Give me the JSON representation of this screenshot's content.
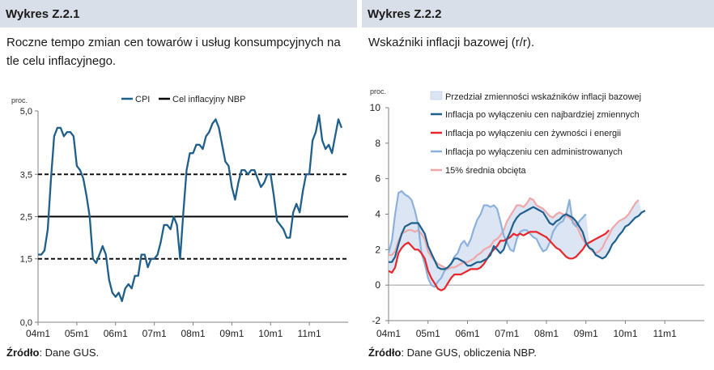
{
  "chart_data": [
    {
      "type": "line",
      "header": "Wykres Z.2.1",
      "title": "Roczne tempo zmian cen towarów i usług konsumpcyjnych na tle celu inflacyjnego.",
      "ylabel": "proc.",
      "ylim": [
        0,
        5
      ],
      "yticks": [
        "0,0",
        "1,5",
        "2,5",
        "3,5",
        "5,0"
      ],
      "ytick_values": [
        0,
        1.5,
        2.5,
        3.5,
        5
      ],
      "x_tick_labels": [
        "04m1",
        "05m1",
        "06m1",
        "07m1",
        "08m1",
        "09m1",
        "10m1",
        "11m1"
      ],
      "legend": [
        "CPI",
        "Cel inflacyjny NBP"
      ],
      "legend_position": "top",
      "target": 2.5,
      "band": [
        1.5,
        3.5
      ],
      "series": [
        {
          "name": "CPI",
          "color": "#1f5f8b",
          "start": "2004-01",
          "values": [
            1.6,
            1.6,
            1.7,
            2.2,
            3.4,
            4.4,
            4.6,
            4.6,
            4.4,
            4.5,
            4.5,
            4.4,
            3.7,
            3.6,
            3.4,
            3.0,
            2.5,
            1.5,
            1.4,
            1.6,
            1.8,
            1.6,
            1.0,
            0.7,
            0.6,
            0.7,
            0.5,
            0.8,
            0.9,
            0.8,
            1.1,
            1.1,
            1.6,
            1.6,
            1.3,
            1.5,
            1.5,
            1.6,
            1.9,
            2.3,
            2.3,
            2.2,
            2.5,
            2.3,
            1.5,
            2.6,
            3.6,
            4.0,
            4.0,
            4.2,
            4.2,
            4.1,
            4.4,
            4.5,
            4.7,
            4.8,
            4.6,
            4.2,
            3.8,
            3.7,
            3.2,
            2.9,
            3.3,
            3.6,
            3.6,
            3.5,
            3.6,
            3.6,
            3.4,
            3.2,
            3.3,
            3.5,
            3.5,
            3.0,
            2.4,
            2.3,
            2.2,
            2.0,
            2.0,
            2.6,
            2.8,
            2.6,
            3.1,
            3.5,
            3.5,
            4.3,
            4.5,
            4.9,
            4.3,
            4.1,
            4.2,
            4.0,
            4.4,
            4.8,
            4.6
          ]
        },
        {
          "name": "Cel inflacyjny NBP",
          "color": "#000000"
        }
      ]
    },
    {
      "type": "line",
      "header": "Wykres Z.2.2",
      "title": "Wskaźniki inflacji bazowej (r/r).",
      "ylabel": "proc.",
      "ylim": [
        -2,
        10
      ],
      "yticks": [
        -2,
        0,
        2,
        4,
        6,
        8,
        10
      ],
      "x_tick_labels": [
        "04m1",
        "05m1",
        "06m1",
        "07m1",
        "08m1",
        "09m1",
        "10m1",
        "11m1"
      ],
      "legend_position": "top",
      "band": {
        "name": "Przedział zmienności wskaźników inflacji bazowej",
        "color": "#dbe5f4"
      },
      "series": [
        {
          "name": "Inflacja po wyłączeniu cen najbardziej zmiennych",
          "color": "#1f5f8b",
          "start": "2004-01",
          "values": [
            1.3,
            1.3,
            1.6,
            2.3,
            2.9,
            3.3,
            3.4,
            3.5,
            3.5,
            3.5,
            3.2,
            2.9,
            2.2,
            1.8,
            1.4,
            1.0,
            0.9,
            0.9,
            1.0,
            1.2,
            1.5,
            1.5,
            1.4,
            1.3,
            1.1,
            1.1,
            1.2,
            1.3,
            1.3,
            1.4,
            1.5,
            1.7,
            2.2,
            2.0,
            1.8,
            2.0,
            2.6,
            3.0,
            3.5,
            3.8,
            4.0,
            4.1,
            4.2,
            4.3,
            4.4,
            4.3,
            4.2,
            4.1,
            3.8,
            3.5,
            3.4,
            3.6,
            3.7,
            3.9,
            4.0,
            3.9,
            3.8,
            3.6,
            3.3,
            3.0,
            2.4,
            2.1,
            2.0,
            1.7,
            1.6,
            1.5,
            1.6,
            1.9,
            2.3,
            2.5,
            2.8,
            3.0,
            3.3,
            3.4,
            3.6,
            3.8,
            3.9,
            4.1,
            4.2
          ]
        },
        {
          "name": "Inflacja po wyłączeniu cen żywności i energii",
          "color": "#e8262b",
          "start": "2004-01",
          "values": [
            0.8,
            0.7,
            1.0,
            1.8,
            2.1,
            2.3,
            2.4,
            2.2,
            2.0,
            2.0,
            1.8,
            1.5,
            0.8,
            0.4,
            0.1,
            -0.2,
            -0.3,
            -0.2,
            0.1,
            0.4,
            0.6,
            0.6,
            0.6,
            0.7,
            0.8,
            0.9,
            0.9,
            0.9,
            1.0,
            1.2,
            1.5,
            1.8,
            2.0,
            2.2,
            2.5,
            2.5,
            2.6,
            2.7,
            2.9,
            2.8,
            2.9,
            2.8,
            2.9,
            3.0,
            3.0,
            3.0,
            2.9,
            2.8,
            2.7,
            2.5,
            2.3,
            2.1,
            2.0,
            1.8,
            1.6,
            1.5,
            1.5,
            1.6,
            1.8,
            2.0,
            2.3,
            2.4,
            2.5,
            2.6,
            2.7,
            2.8,
            2.9,
            3.1
          ]
        },
        {
          "name": "Inflacja po wyłączeniu cen administrowanych",
          "color": "#8cb2dc",
          "start": "2004-01",
          "values": [
            1.8,
            2.5,
            4.0,
            5.2,
            5.3,
            5.1,
            5.0,
            4.8,
            4.2,
            3.4,
            1.8,
            1.2,
            0.4,
            0.0,
            -0.1,
            0.2,
            0.4,
            0.8,
            1.0,
            1.2,
            1.6,
            1.8,
            2.3,
            2.5,
            2.2,
            2.6,
            3.2,
            3.7,
            4.0,
            4.5,
            4.5,
            4.4,
            4.5,
            4.3,
            3.6,
            2.8,
            2.4,
            2.0,
            1.9,
            2.6,
            3.0,
            3.1,
            3.1,
            2.9,
            2.7,
            2.6,
            2.2,
            1.9,
            2.0,
            2.4,
            3.0,
            3.3,
            3.5,
            3.6,
            4.0,
            4.8,
            3.5,
            3.3,
            3.6,
            3.8,
            4.0
          ]
        },
        {
          "name": "15% średnia obcięta",
          "color": "#f0a7a8",
          "start": "2004-01",
          "values": [
            1.7,
            1.7,
            1.9,
            2.5,
            2.9,
            3.0,
            3.1,
            3.1,
            3.0,
            3.1,
            2.9,
            2.6,
            1.9,
            1.6,
            1.4,
            1.2,
            1.1,
            1.0,
            0.9,
            1.0,
            1.0,
            1.1,
            1.2,
            1.3,
            1.3,
            1.4,
            1.5,
            1.7,
            1.8,
            2.0,
            2.1,
            2.2,
            2.5,
            2.6,
            2.8,
            3.1,
            3.6,
            3.9,
            4.2,
            4.5,
            4.5,
            4.4,
            4.6,
            4.9,
            4.8,
            4.5,
            4.4,
            4.3,
            4.1,
            3.9,
            3.8,
            4.0,
            4.1,
            4.0,
            3.9,
            3.8,
            3.6,
            3.4,
            3.0,
            2.6,
            2.3,
            2.1,
            1.9,
            1.8,
            1.9,
            2.1,
            2.5,
            2.8,
            3.2,
            3.4,
            3.6,
            3.7,
            3.8,
            4.0,
            4.3,
            4.6,
            4.8
          ]
        }
      ]
    }
  ],
  "sources": [
    {
      "label": "Źródło",
      "text": ": Dane GUS."
    },
    {
      "label": "Źródło",
      "text": ": Dane GUS, obliczenia NBP."
    }
  ]
}
